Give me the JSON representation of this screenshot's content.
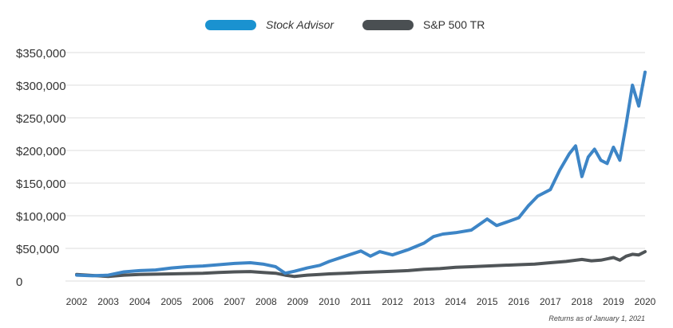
{
  "chart_data": {
    "type": "line",
    "title": "",
    "xlabel": "",
    "ylabel": "",
    "x_tick_labels": [
      "2002",
      "2003",
      "2004",
      "2005",
      "2006",
      "2007",
      "2008",
      "2009",
      "2010",
      "2011",
      "2012",
      "2013",
      "2014",
      "2015",
      "2016",
      "2017",
      "2018",
      "2019",
      "2020"
    ],
    "y_tick_labels": [
      "0",
      "$50,000",
      "$100,000",
      "$150,000",
      "$200,000",
      "$250,000",
      "$300,000",
      "$350,000"
    ],
    "ylim": [
      0,
      350000
    ],
    "xlim": [
      2002,
      2020
    ],
    "grid": true,
    "legend_position": "top-center",
    "footnote": "Returns as of January 1, 2021",
    "series": [
      {
        "name": "Stock Advisor",
        "color": "#3d85c6",
        "legend_color": "#1a92d0",
        "legend_italic": true,
        "x": [
          2002,
          2002.5,
          2003,
          2003.5,
          2004,
          2004.5,
          2005,
          2005.5,
          2006,
          2006.5,
          2007,
          2007.5,
          2007.9,
          2008.3,
          2008.6,
          2008.9,
          2009.3,
          2009.7,
          2010,
          2010.5,
          2011,
          2011.3,
          2011.6,
          2012,
          2012.5,
          2013,
          2013.3,
          2013.6,
          2014,
          2014.5,
          2015,
          2015.3,
          2015.6,
          2016,
          2016.3,
          2016.6,
          2017,
          2017.3,
          2017.6,
          2017.8,
          2018,
          2018.2,
          2018.4,
          2018.6,
          2018.8,
          2019,
          2019.2,
          2019.4,
          2019.6,
          2019.8,
          2020
        ],
        "y": [
          9000,
          8000,
          9000,
          14000,
          16000,
          17000,
          20000,
          22000,
          23000,
          25000,
          27000,
          28000,
          26000,
          22000,
          12000,
          15000,
          20000,
          24000,
          30000,
          38000,
          46000,
          38000,
          45000,
          40000,
          48000,
          58000,
          68000,
          72000,
          74000,
          78000,
          95000,
          85000,
          90000,
          97000,
          115000,
          130000,
          140000,
          170000,
          195000,
          207000,
          160000,
          190000,
          202000,
          185000,
          180000,
          205000,
          185000,
          240000,
          300000,
          268000,
          320000
        ]
      },
      {
        "name": "S&P 500 TR",
        "color": "#505558",
        "legend_color": "#4a4f52",
        "legend_italic": false,
        "x": [
          2002,
          2002.5,
          2003,
          2003.5,
          2004,
          2004.5,
          2005,
          2005.5,
          2006,
          2006.5,
          2007,
          2007.5,
          2007.9,
          2008.3,
          2008.6,
          2008.9,
          2009.3,
          2009.7,
          2010,
          2010.5,
          2011,
          2011.5,
          2012,
          2012.5,
          2013,
          2013.5,
          2014,
          2014.5,
          2015,
          2015.5,
          2016,
          2016.5,
          2017,
          2017.5,
          2018,
          2018.3,
          2018.6,
          2019,
          2019.2,
          2019.4,
          2019.6,
          2019.8,
          2020
        ],
        "y": [
          10000,
          8500,
          7000,
          9000,
          10000,
          10500,
          11000,
          11500,
          12000,
          13000,
          14000,
          14500,
          13000,
          12000,
          9000,
          7000,
          9000,
          10000,
          11000,
          12000,
          13000,
          14000,
          15000,
          16000,
          18000,
          19000,
          21000,
          22000,
          23000,
          24000,
          25000,
          26000,
          28000,
          30000,
          33000,
          31000,
          32000,
          36000,
          32000,
          38000,
          41000,
          40000,
          45000
        ]
      }
    ]
  }
}
